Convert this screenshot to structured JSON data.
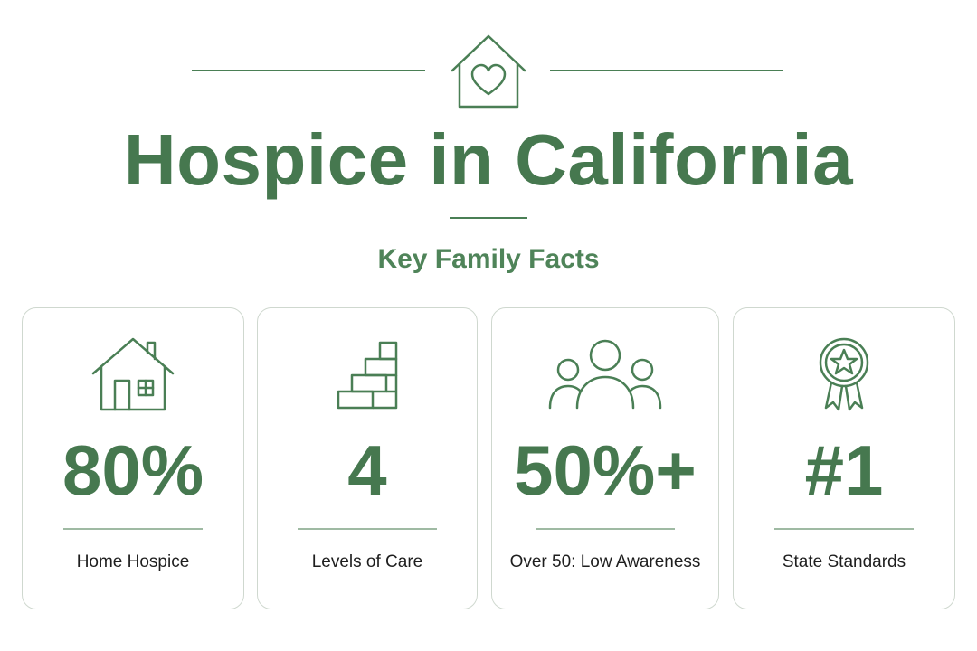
{
  "header": {
    "title": "Hospice in California",
    "subtitle": "Key Family Facts",
    "icon": "house-heart-icon"
  },
  "colors": {
    "accent": "#46784f",
    "card_border": "#cfd8cf",
    "label_text": "#1e1e1e"
  },
  "cards": [
    {
      "icon": "house-icon",
      "value": "80%",
      "label": "Home Hospice"
    },
    {
      "icon": "stairs-icon",
      "value": "4",
      "label": "Levels of Care"
    },
    {
      "icon": "people-group-icon",
      "value": "50%+",
      "label": "Over 50: Low Awareness"
    },
    {
      "icon": "award-ribbon-star-icon",
      "value": "#1",
      "label": "State Standards"
    }
  ]
}
